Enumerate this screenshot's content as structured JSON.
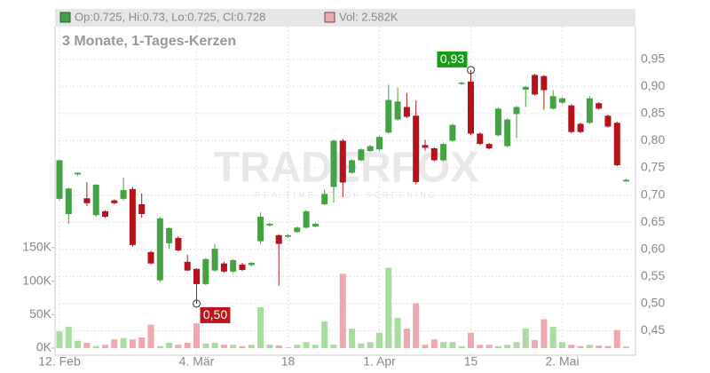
{
  "chart_data": {
    "type": "candlestick",
    "subtitle": "3 Monate, 1-Tages-Kerzen",
    "legend": [
      {
        "name": "Op:0.725, Hi:0.73, Lo:0.725, Cl:0.728",
        "color": "#44a244"
      },
      {
        "name": "Vol: 2.582K",
        "color": "#f0a8b0"
      }
    ],
    "watermark": "TRADERFOX",
    "watermark_sub": "REALTIME STOCK SCREENING",
    "categories": [
      "12. Feb",
      null,
      null,
      null,
      null,
      null,
      null,
      null,
      null,
      null,
      null,
      null,
      null,
      null,
      null,
      "4. Mär",
      null,
      null,
      null,
      null,
      null,
      null,
      null,
      null,
      null,
      "18",
      null,
      null,
      null,
      null,
      null,
      null,
      null,
      null,
      null,
      "1. Apr",
      null,
      null,
      null,
      null,
      null,
      null,
      null,
      null,
      null,
      "15",
      null,
      null,
      null,
      null,
      null,
      null,
      null,
      null,
      null,
      "2. Mai",
      null,
      null,
      null,
      null,
      null,
      null,
      null
    ],
    "open": [
      0.693,
      0.665,
      0.738,
      0.694,
      0.663,
      0.67,
      0.69,
      0.693,
      0.711,
      0.683,
      0.595,
      0.543,
      0.611,
      0.621,
      0.577,
      0.564,
      0.536,
      0.561,
      0.574,
      0.559,
      0.572,
      0.571,
      0.615,
      0.644,
      0.626,
      0.623,
      0.632,
      0.64,
      0.642,
      0.683,
      0.715,
      0.8,
      0.741,
      0.764,
      0.781,
      0.784,
      0.815,
      0.839,
      0.862,
      0.846,
      0.792,
      0.786,
      0.764,
      0.8,
      0.905,
      0.909,
      0.813,
      0.794,
      0.81,
      0.79,
      0.849,
      0.894,
      0.921,
      0.919,
      0.859,
      0.87,
      0.865,
      0.831,
      0.833,
      0.869,
      0.846,
      0.833,
      0.725
    ],
    "high": [
      0.765,
      0.713,
      0.742,
      0.724,
      0.72,
      0.672,
      0.692,
      0.732,
      0.715,
      0.703,
      0.597,
      0.66,
      0.641,
      0.624,
      0.59,
      0.565,
      0.584,
      0.61,
      0.577,
      0.582,
      0.575,
      0.577,
      0.668,
      0.649,
      0.628,
      0.628,
      0.642,
      0.672,
      0.649,
      0.71,
      0.802,
      0.803,
      0.766,
      0.786,
      0.792,
      0.809,
      0.903,
      0.898,
      0.888,
      0.874,
      0.802,
      0.788,
      0.796,
      0.831,
      0.908,
      0.93,
      0.815,
      0.796,
      0.861,
      0.841,
      0.864,
      0.901,
      0.923,
      0.921,
      0.893,
      0.88,
      0.867,
      0.833,
      0.882,
      0.871,
      0.848,
      0.835,
      0.73
    ],
    "low": [
      0.69,
      0.647,
      0.735,
      0.68,
      0.66,
      0.658,
      0.683,
      0.69,
      0.605,
      0.658,
      0.572,
      0.54,
      0.601,
      0.596,
      0.56,
      0.5,
      0.534,
      0.559,
      0.557,
      0.557,
      0.56,
      0.569,
      0.61,
      0.642,
      0.533,
      0.621,
      0.63,
      0.638,
      0.64,
      0.681,
      0.686,
      0.696,
      0.739,
      0.762,
      0.779,
      0.782,
      0.813,
      0.837,
      0.842,
      0.72,
      0.782,
      0.762,
      0.762,
      0.798,
      0.903,
      0.81,
      0.792,
      0.784,
      0.808,
      0.788,
      0.805,
      0.862,
      0.883,
      0.857,
      0.857,
      0.868,
      0.814,
      0.814,
      0.831,
      0.857,
      0.824,
      0.753,
      0.725
    ],
    "close": [
      0.764,
      0.712,
      0.741,
      0.685,
      0.719,
      0.66,
      0.685,
      0.709,
      0.608,
      0.665,
      0.574,
      0.657,
      0.639,
      0.598,
      0.561,
      0.536,
      0.582,
      0.601,
      0.559,
      0.58,
      0.562,
      0.575,
      0.66,
      0.647,
      0.61,
      0.626,
      0.64,
      0.67,
      0.647,
      0.702,
      0.8,
      0.723,
      0.764,
      0.784,
      0.79,
      0.807,
      0.875,
      0.872,
      0.844,
      0.724,
      0.787,
      0.764,
      0.794,
      0.829,
      0.907,
      0.813,
      0.794,
      0.786,
      0.859,
      0.839,
      0.862,
      0.899,
      0.885,
      0.893,
      0.882,
      0.878,
      0.816,
      0.816,
      0.878,
      0.859,
      0.826,
      0.755,
      0.728
    ],
    "volume": [
      25000,
      32000,
      11000,
      8000,
      3000,
      5000,
      13000,
      15000,
      13000,
      16000,
      35000,
      3000,
      8000,
      5000,
      8000,
      37000,
      7000,
      8000,
      5000,
      5000,
      3000,
      5000,
      61000,
      5000,
      4000,
      1000,
      5000,
      9000,
      5000,
      40000,
      5000,
      111000,
      29000,
      7000,
      9000,
      23000,
      120000,
      45000,
      29000,
      67000,
      5000,
      13000,
      9000,
      9000,
      3000,
      23000,
      5000,
      5000,
      3000,
      5000,
      9000,
      29000,
      12000,
      43000,
      32000,
      9000,
      5000,
      3000,
      5000,
      4000,
      3000,
      27000,
      2582
    ],
    "up_color": "#44a244",
    "down_color": "#b5121b",
    "vol_up_color": "#a8dca0",
    "vol_down_color": "#f0a8b0",
    "ylim": [
      0.405,
      1.01
    ],
    "yticks": [
      {
        "value": 0.45,
        "label": "0,45"
      },
      {
        "value": 0.5,
        "label": "0,50"
      },
      {
        "value": 0.55,
        "label": "0,55"
      },
      {
        "value": 0.6,
        "label": "0,60"
      },
      {
        "value": 0.65,
        "label": "0,65"
      },
      {
        "value": 0.7,
        "label": "0,70"
      },
      {
        "value": 0.75,
        "label": "0,75"
      },
      {
        "value": 0.8,
        "label": "0,80"
      },
      {
        "value": 0.85,
        "label": "0,85"
      },
      {
        "value": 0.9,
        "label": "0,90"
      },
      {
        "value": 0.95,
        "label": "0,95"
      }
    ],
    "y2lim": [
      0,
      480000
    ],
    "y2ticks": [
      {
        "value": 0,
        "label": "0K"
      },
      {
        "value": 50000,
        "label": "50K"
      },
      {
        "value": 100000,
        "label": "100K"
      },
      {
        "value": 150000,
        "label": "150K"
      }
    ],
    "annotations": [
      {
        "value": 0.93,
        "label": "0,93",
        "color": "#169c16"
      },
      {
        "value": 0.5,
        "label": "0,50",
        "color": "#c0141c"
      }
    ],
    "grid": true
  }
}
